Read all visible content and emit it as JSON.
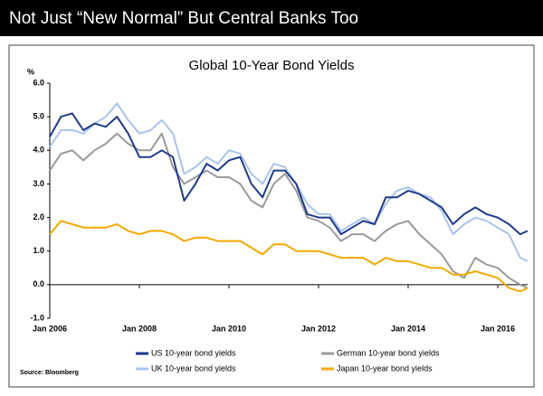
{
  "header": {
    "title": "Not Just “New Normal” But Central Banks Too"
  },
  "chart_data": {
    "type": "line",
    "title": "Global 10-Year Bond Yields",
    "y_label": "%",
    "source": "Source: Bloomberg",
    "x": [
      "2006-01",
      "2006-04",
      "2006-07",
      "2006-10",
      "2007-01",
      "2007-04",
      "2007-07",
      "2007-10",
      "2008-01",
      "2008-04",
      "2008-07",
      "2008-10",
      "2009-01",
      "2009-04",
      "2009-07",
      "2009-10",
      "2010-01",
      "2010-04",
      "2010-07",
      "2010-10",
      "2011-01",
      "2011-04",
      "2011-07",
      "2011-10",
      "2012-01",
      "2012-04",
      "2012-07",
      "2012-10",
      "2013-01",
      "2013-04",
      "2013-07",
      "2013-10",
      "2014-01",
      "2014-04",
      "2014-07",
      "2014-10",
      "2015-01",
      "2015-04",
      "2015-07",
      "2015-10",
      "2016-01",
      "2016-04",
      "2016-07",
      "2016-09"
    ],
    "series": [
      {
        "name": "US 10-year bond yields",
        "color": "#1f3a8a",
        "values": [
          4.4,
          5.0,
          5.1,
          4.6,
          4.8,
          4.7,
          5.0,
          4.5,
          3.8,
          3.8,
          4.0,
          3.8,
          2.5,
          3.0,
          3.6,
          3.4,
          3.7,
          3.8,
          3.0,
          2.6,
          3.4,
          3.4,
          3.0,
          2.1,
          2.0,
          2.0,
          1.5,
          1.7,
          1.9,
          1.8,
          2.6,
          2.6,
          2.8,
          2.7,
          2.5,
          2.3,
          1.8,
          2.1,
          2.3,
          2.1,
          2.0,
          1.8,
          1.5,
          1.6
        ]
      },
      {
        "name": "German 10-year bond yields",
        "color": "#9a9a9a",
        "values": [
          3.4,
          3.9,
          4.0,
          3.7,
          4.0,
          4.2,
          4.5,
          4.2,
          4.0,
          4.0,
          4.5,
          3.5,
          3.0,
          3.2,
          3.4,
          3.2,
          3.2,
          3.0,
          2.5,
          2.3,
          3.0,
          3.3,
          2.8,
          2.0,
          1.9,
          1.7,
          1.3,
          1.5,
          1.5,
          1.3,
          1.6,
          1.8,
          1.9,
          1.5,
          1.2,
          0.9,
          0.4,
          0.2,
          0.8,
          0.6,
          0.5,
          0.2,
          0.0,
          -0.1
        ]
      },
      {
        "name": "UK 10-year bond yields",
        "color": "#a9c4ec",
        "values": [
          4.1,
          4.6,
          4.6,
          4.5,
          4.8,
          5.0,
          5.4,
          4.9,
          4.5,
          4.6,
          4.9,
          4.5,
          3.3,
          3.5,
          3.8,
          3.6,
          4.0,
          3.9,
          3.3,
          3.0,
          3.6,
          3.5,
          3.0,
          2.4,
          2.1,
          2.1,
          1.6,
          1.8,
          2.0,
          1.8,
          2.4,
          2.8,
          2.9,
          2.7,
          2.6,
          2.2,
          1.5,
          1.8,
          2.0,
          1.9,
          1.7,
          1.5,
          0.8,
          0.7
        ]
      },
      {
        "name": "Japan 10-year bond yields",
        "color": "#f2a900",
        "values": [
          1.5,
          1.9,
          1.8,
          1.7,
          1.7,
          1.7,
          1.8,
          1.6,
          1.5,
          1.6,
          1.6,
          1.5,
          1.3,
          1.4,
          1.4,
          1.3,
          1.3,
          1.3,
          1.1,
          0.9,
          1.2,
          1.2,
          1.0,
          1.0,
          1.0,
          0.9,
          0.8,
          0.8,
          0.8,
          0.6,
          0.8,
          0.7,
          0.7,
          0.6,
          0.5,
          0.5,
          0.3,
          0.3,
          0.4,
          0.3,
          0.2,
          -0.1,
          -0.2,
          -0.1
        ]
      }
    ],
    "xlim": [
      "2006-01",
      "2016-09"
    ],
    "xticks": [
      {
        "value": "2006-01",
        "label": "Jan 2006"
      },
      {
        "value": "2008-01",
        "label": "Jan 2008"
      },
      {
        "value": "2010-01",
        "label": "Jan 2010"
      },
      {
        "value": "2012-01",
        "label": "Jan 2012"
      },
      {
        "value": "2014-01",
        "label": "Jan 2014"
      },
      {
        "value": "2016-01",
        "label": "Jan 2016"
      }
    ],
    "ylim": [
      -1,
      6
    ],
    "yticks": [
      {
        "value": 6,
        "label": "6.0"
      },
      {
        "value": 5,
        "label": "5.0"
      },
      {
        "value": 4,
        "label": "4.0"
      },
      {
        "value": 3,
        "label": "3.0"
      },
      {
        "value": 2,
        "label": "2.0"
      },
      {
        "value": 1,
        "label": "1.0"
      },
      {
        "value": 0,
        "label": "0.0"
      },
      {
        "value": -1,
        "label": "-1.0"
      }
    ],
    "grid": false
  }
}
